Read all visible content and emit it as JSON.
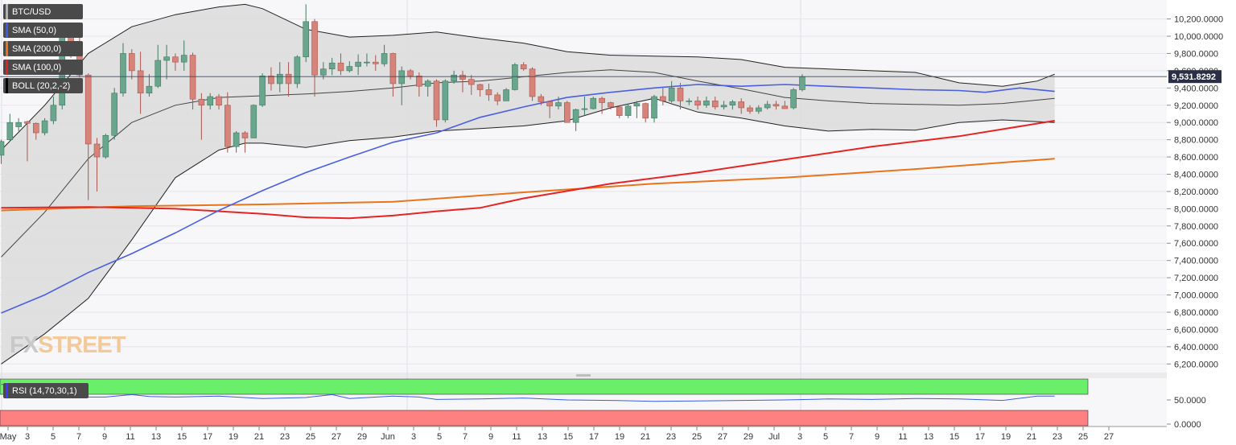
{
  "legend": [
    {
      "label": "BTC/USD",
      "color": "#b0b0b0"
    },
    {
      "label": "SMA (50,0)",
      "color": "#3d5be8"
    },
    {
      "label": "SMA (200,0)",
      "color": "#e8741c"
    },
    {
      "label": "SMA (100,0)",
      "color": "#e52020"
    },
    {
      "label": "BOLL (20,2,-2)",
      "color": "#000000"
    }
  ],
  "rsi_label": "RSI (14,70,30,1)",
  "watermark": {
    "part1": "FX",
    "part2": "STREET"
  },
  "colors": {
    "up": "#6aa58e",
    "down": "#d6837a",
    "sma50": "#4a5fe0",
    "sma100": "#e52424",
    "sma200": "#e8741c",
    "band_fill": "#dcdcdc",
    "rsi_line": "#3a5ee0",
    "rsi_over": "#6aef6a",
    "rsi_under": "#ff8080"
  },
  "chart_data": {
    "type": "candlestick",
    "symbol": "BTC/USD",
    "current_price": "9,531.8292",
    "ylim": [
      6100,
      10420
    ],
    "y_ticks": [
      "10,200.0000",
      "10,000.0000",
      "9,800.0000",
      "9,600.0000",
      "9,400.0000",
      "9,200.0000",
      "9,000.0000",
      "8,800.0000",
      "8,600.0000",
      "8,400.0000",
      "8,200.0000",
      "8,000.0000",
      "7,800.0000",
      "7,600.0000",
      "7,400.0000",
      "7,200.0000",
      "7,000.0000",
      "6,800.0000",
      "6,600.0000",
      "6,400.0000",
      "6,200.0000"
    ],
    "x_ticks": [
      "May",
      "3",
      "5",
      "7",
      "9",
      "11",
      "13",
      "15",
      "17",
      "19",
      "21",
      "23",
      "25",
      "27",
      "29",
      "Jun",
      "3",
      "5",
      "7",
      "9",
      "11",
      "13",
      "15",
      "17",
      "19",
      "21",
      "23",
      "25",
      "27",
      "29",
      "Jul",
      "3",
      "5",
      "7",
      "9",
      "11",
      "13",
      "15",
      "17",
      "19",
      "21",
      "23",
      "25",
      "27"
    ],
    "candles": [
      [
        8620,
        8780,
        8520,
        8800
      ],
      [
        8800,
        9000,
        8780,
        9100
      ],
      [
        8950,
        9000,
        8900,
        9050
      ],
      [
        9010,
        8990,
        8550,
        9020
      ],
      [
        8990,
        8880,
        8800,
        9000
      ],
      [
        8880,
        9020,
        8850,
        9050
      ],
      [
        9020,
        9200,
        8980,
        9300
      ],
      [
        9200,
        10000,
        9150,
        10050
      ],
      [
        10000,
        9800,
        9750,
        10050
      ],
      [
        9800,
        9550,
        9520,
        10000
      ],
      [
        9550,
        8750,
        8100,
        9570
      ],
      [
        8750,
        8600,
        8200,
        8820
      ],
      [
        8600,
        8850,
        8580,
        8870
      ],
      [
        8850,
        9340,
        8800,
        9400
      ],
      [
        9340,
        9800,
        9300,
        9920
      ],
      [
        9800,
        9600,
        9500,
        9850
      ],
      [
        9600,
        9340,
        9100,
        9820
      ],
      [
        9340,
        9420,
        9300,
        9560
      ],
      [
        9420,
        9720,
        9400,
        9900
      ],
      [
        9720,
        9760,
        9500,
        9900
      ],
      [
        9760,
        9700,
        9600,
        9800
      ],
      [
        9700,
        9780,
        9600,
        9950
      ],
      [
        9780,
        9270,
        9150,
        9810
      ],
      [
        9270,
        9200,
        8800,
        9340
      ],
      [
        9200,
        9300,
        9150,
        9340
      ],
      [
        9300,
        9200,
        9150,
        9330
      ],
      [
        9200,
        8720,
        8650,
        9350
      ],
      [
        8720,
        8880,
        8650,
        8900
      ],
      [
        8880,
        8820,
        8650,
        8900
      ],
      [
        8820,
        9200,
        8820,
        9210
      ],
      [
        9200,
        9540,
        9180,
        9570
      ],
      [
        9540,
        9450,
        9370,
        9640
      ],
      [
        9450,
        9560,
        9350,
        9700
      ],
      [
        9560,
        9450,
        9300,
        9700
      ],
      [
        9450,
        9760,
        9400,
        9780
      ],
      [
        9760,
        10170,
        9700,
        10370
      ],
      [
        10170,
        9550,
        9300,
        10200
      ],
      [
        9550,
        9620,
        9500,
        9700
      ],
      [
        9620,
        9690,
        9550,
        9750
      ],
      [
        9690,
        9600,
        9550,
        9800
      ],
      [
        9600,
        9650,
        9580,
        9710
      ],
      [
        9650,
        9700,
        9550,
        9790
      ],
      [
        9700,
        9700,
        9650,
        9800
      ],
      [
        9700,
        9680,
        9600,
        9780
      ],
      [
        9680,
        9800,
        9650,
        9900
      ],
      [
        9800,
        9450,
        9300,
        9810
      ],
      [
        9450,
        9600,
        9200,
        9650
      ],
      [
        9600,
        9540,
        9500,
        9620
      ],
      [
        9540,
        9420,
        9300,
        9580
      ],
      [
        9420,
        9480,
        9300,
        9500
      ],
      [
        9480,
        9030,
        8950,
        9500
      ],
      [
        9030,
        9480,
        9000,
        9500
      ],
      [
        9480,
        9550,
        9450,
        9600
      ],
      [
        9550,
        9500,
        9350,
        9600
      ],
      [
        9500,
        9440,
        9320,
        9550
      ],
      [
        9440,
        9380,
        9300,
        9450
      ],
      [
        9380,
        9320,
        9250,
        9450
      ],
      [
        9320,
        9250,
        9200,
        9350
      ],
      [
        9250,
        9380,
        9250,
        9400
      ],
      [
        9380,
        9670,
        9370,
        9690
      ],
      [
        9670,
        9620,
        9600,
        9700
      ],
      [
        9620,
        9300,
        9250,
        9640
      ],
      [
        9300,
        9240,
        9200,
        9330
      ],
      [
        9240,
        9190,
        9050,
        9250
      ],
      [
        9190,
        9230,
        9150,
        9300
      ],
      [
        9230,
        9000,
        9000,
        9250
      ],
      [
        9000,
        9150,
        8900,
        9160
      ],
      [
        9150,
        9160,
        9080,
        9300
      ],
      [
        9160,
        9280,
        9150,
        9300
      ],
      [
        9280,
        9230,
        9100,
        9300
      ],
      [
        9230,
        9180,
        9150,
        9240
      ],
      [
        9180,
        9080,
        9050,
        9200
      ],
      [
        9080,
        9190,
        9050,
        9220
      ],
      [
        9190,
        9220,
        9050,
        9250
      ],
      [
        9220,
        9050,
        9000,
        9230
      ],
      [
        9050,
        9300,
        9000,
        9320
      ],
      [
        9300,
        9250,
        9200,
        9400
      ],
      [
        9250,
        9400,
        9230,
        9480
      ],
      [
        9400,
        9250,
        9150,
        9460
      ],
      [
        9250,
        9250,
        9200,
        9280
      ],
      [
        9250,
        9200,
        9150,
        9300
      ],
      [
        9200,
        9250,
        9170,
        9300
      ],
      [
        9250,
        9180,
        9150,
        9300
      ],
      [
        9180,
        9200,
        9150,
        9250
      ],
      [
        9200,
        9240,
        9150,
        9260
      ],
      [
        9240,
        9170,
        9100,
        9280
      ],
      [
        9170,
        9130,
        9100,
        9200
      ],
      [
        9130,
        9170,
        9100,
        9200
      ],
      [
        9170,
        9210,
        9150,
        9250
      ],
      [
        9210,
        9190,
        9150,
        9250
      ],
      [
        9190,
        9160,
        9170,
        9250
      ],
      [
        9170,
        9380,
        9150,
        9400
      ],
      [
        9380,
        9530,
        9360,
        9560
      ]
    ],
    "sma50": [
      [
        0,
        6790
      ],
      [
        5,
        7000
      ],
      [
        10,
        7260
      ],
      [
        15,
        7480
      ],
      [
        20,
        7720
      ],
      [
        25,
        7980
      ],
      [
        30,
        8210
      ],
      [
        35,
        8420
      ],
      [
        40,
        8600
      ],
      [
        45,
        8770
      ],
      [
        50,
        8880
      ],
      [
        55,
        9060
      ],
      [
        60,
        9180
      ],
      [
        65,
        9290
      ],
      [
        70,
        9350
      ],
      [
        75,
        9400
      ],
      [
        80,
        9440
      ],
      [
        85,
        9420
      ],
      [
        90,
        9440
      ],
      [
        95,
        9420
      ],
      [
        100,
        9400
      ],
      [
        105,
        9380
      ],
      [
        110,
        9370
      ],
      [
        113,
        9350
      ],
      [
        117,
        9400
      ],
      [
        121,
        9360
      ]
    ],
    "sma100": [
      [
        0,
        8010
      ],
      [
        10,
        8020
      ],
      [
        20,
        8000
      ],
      [
        30,
        7940
      ],
      [
        35,
        7900
      ],
      [
        40,
        7890
      ],
      [
        45,
        7920
      ],
      [
        50,
        7970
      ],
      [
        55,
        8010
      ],
      [
        60,
        8120
      ],
      [
        70,
        8290
      ],
      [
        80,
        8420
      ],
      [
        90,
        8570
      ],
      [
        100,
        8720
      ],
      [
        110,
        8840
      ],
      [
        121,
        9020
      ]
    ],
    "sma200": [
      [
        0,
        7980
      ],
      [
        15,
        8030
      ],
      [
        30,
        8050
      ],
      [
        45,
        8080
      ],
      [
        60,
        8190
      ],
      [
        75,
        8290
      ],
      [
        90,
        8360
      ],
      [
        105,
        8460
      ],
      [
        121,
        8580
      ]
    ],
    "boll_upper": [
      [
        0,
        8680
      ],
      [
        5,
        9200
      ],
      [
        10,
        9800
      ],
      [
        15,
        10110
      ],
      [
        20,
        10250
      ],
      [
        25,
        10340
      ],
      [
        28,
        10370
      ],
      [
        30,
        10320
      ],
      [
        35,
        10080
      ],
      [
        40,
        9990
      ],
      [
        45,
        10010
      ],
      [
        50,
        10050
      ],
      [
        55,
        9980
      ],
      [
        60,
        9920
      ],
      [
        65,
        9820
      ],
      [
        70,
        9780
      ],
      [
        75,
        9770
      ],
      [
        80,
        9760
      ],
      [
        85,
        9730
      ],
      [
        90,
        9640
      ],
      [
        95,
        9620
      ],
      [
        100,
        9600
      ],
      [
        105,
        9580
      ],
      [
        110,
        9460
      ],
      [
        115,
        9420
      ],
      [
        119,
        9480
      ],
      [
        121,
        9560
      ]
    ],
    "boll_mid": [
      [
        0,
        7440
      ],
      [
        5,
        7960
      ],
      [
        10,
        8580
      ],
      [
        15,
        9000
      ],
      [
        20,
        9200
      ],
      [
        25,
        9290
      ],
      [
        30,
        9310
      ],
      [
        35,
        9330
      ],
      [
        40,
        9360
      ],
      [
        45,
        9400
      ],
      [
        50,
        9460
      ],
      [
        55,
        9480
      ],
      [
        60,
        9530
      ],
      [
        65,
        9580
      ],
      [
        70,
        9610
      ],
      [
        75,
        9580
      ],
      [
        80,
        9480
      ],
      [
        85,
        9390
      ],
      [
        90,
        9290
      ],
      [
        95,
        9250
      ],
      [
        100,
        9220
      ],
      [
        105,
        9210
      ],
      [
        110,
        9200
      ],
      [
        115,
        9220
      ],
      [
        121,
        9280
      ]
    ],
    "boll_lower": [
      [
        0,
        6200
      ],
      [
        5,
        6550
      ],
      [
        10,
        6960
      ],
      [
        15,
        7640
      ],
      [
        20,
        8360
      ],
      [
        25,
        8680
      ],
      [
        28,
        8760
      ],
      [
        30,
        8760
      ],
      [
        35,
        8710
      ],
      [
        40,
        8790
      ],
      [
        45,
        8830
      ],
      [
        50,
        8900
      ],
      [
        55,
        8930
      ],
      [
        60,
        8960
      ],
      [
        65,
        9020
      ],
      [
        70,
        9170
      ],
      [
        75,
        9280
      ],
      [
        80,
        9120
      ],
      [
        85,
        9050
      ],
      [
        90,
        8960
      ],
      [
        95,
        8900
      ],
      [
        100,
        8920
      ],
      [
        105,
        8910
      ],
      [
        110,
        9000
      ],
      [
        115,
        9030
      ],
      [
        121,
        9000
      ]
    ],
    "rsi": {
      "ylim": [
        -5,
        95
      ],
      "y_ticks": [
        "50.0000",
        "0.0000"
      ],
      "values": [
        [
          0,
          82
        ],
        [
          3,
          83
        ],
        [
          6,
          68
        ],
        [
          9,
          56
        ],
        [
          12,
          56
        ],
        [
          15,
          61
        ],
        [
          17,
          57
        ],
        [
          20,
          56
        ],
        [
          25,
          58
        ],
        [
          30,
          53
        ],
        [
          35,
          55
        ],
        [
          38,
          61
        ],
        [
          40,
          53
        ],
        [
          45,
          58
        ],
        [
          48,
          56
        ],
        [
          50,
          51
        ],
        [
          55,
          52
        ],
        [
          60,
          54
        ],
        [
          65,
          50
        ],
        [
          70,
          49
        ],
        [
          75,
          47
        ],
        [
          80,
          48
        ],
        [
          85,
          49
        ],
        [
          90,
          50
        ],
        [
          95,
          52
        ],
        [
          100,
          51
        ],
        [
          105,
          53
        ],
        [
          110,
          52
        ],
        [
          115,
          49
        ],
        [
          119,
          58
        ],
        [
          121,
          58
        ]
      ]
    }
  }
}
